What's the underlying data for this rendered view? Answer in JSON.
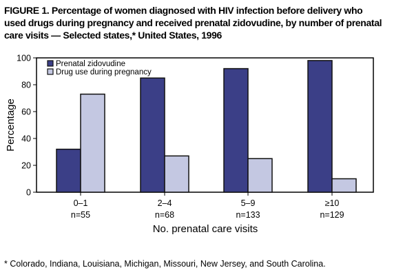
{
  "chart_data": {
    "type": "bar",
    "title_lines": [
      "FIGURE 1. Percentage of women diagnosed with HIV infection before delivery who",
      "used drugs during pregnancy and received prenatal zidovudine, by number of prenatal",
      "care visits — Selected states,* United States, 1996"
    ],
    "categories": [
      "0–1",
      "2–4",
      "5–9",
      "≥10"
    ],
    "category_counts": [
      "n=55",
      "n=68",
      "n=133",
      "n=129"
    ],
    "series": [
      {
        "name": "Prenatal zidovudine",
        "color": "#3b3f87",
        "values": [
          32,
          85,
          92,
          98
        ]
      },
      {
        "name": "Drug use during pregnancy",
        "color": "#c4c8e2",
        "values": [
          73,
          27,
          25,
          10
        ]
      }
    ],
    "xlabel": "No. prenatal care visits",
    "ylabel": "Percentage",
    "ylim": [
      0,
      100
    ],
    "yticks": [
      "0",
      "20",
      "40",
      "60",
      "80",
      "100"
    ],
    "grid": false,
    "legend_position": "top-left"
  },
  "footnote": "* Colorado, Indiana, Louisiana, Michigan, Missouri, New Jersey, and South Carolina."
}
